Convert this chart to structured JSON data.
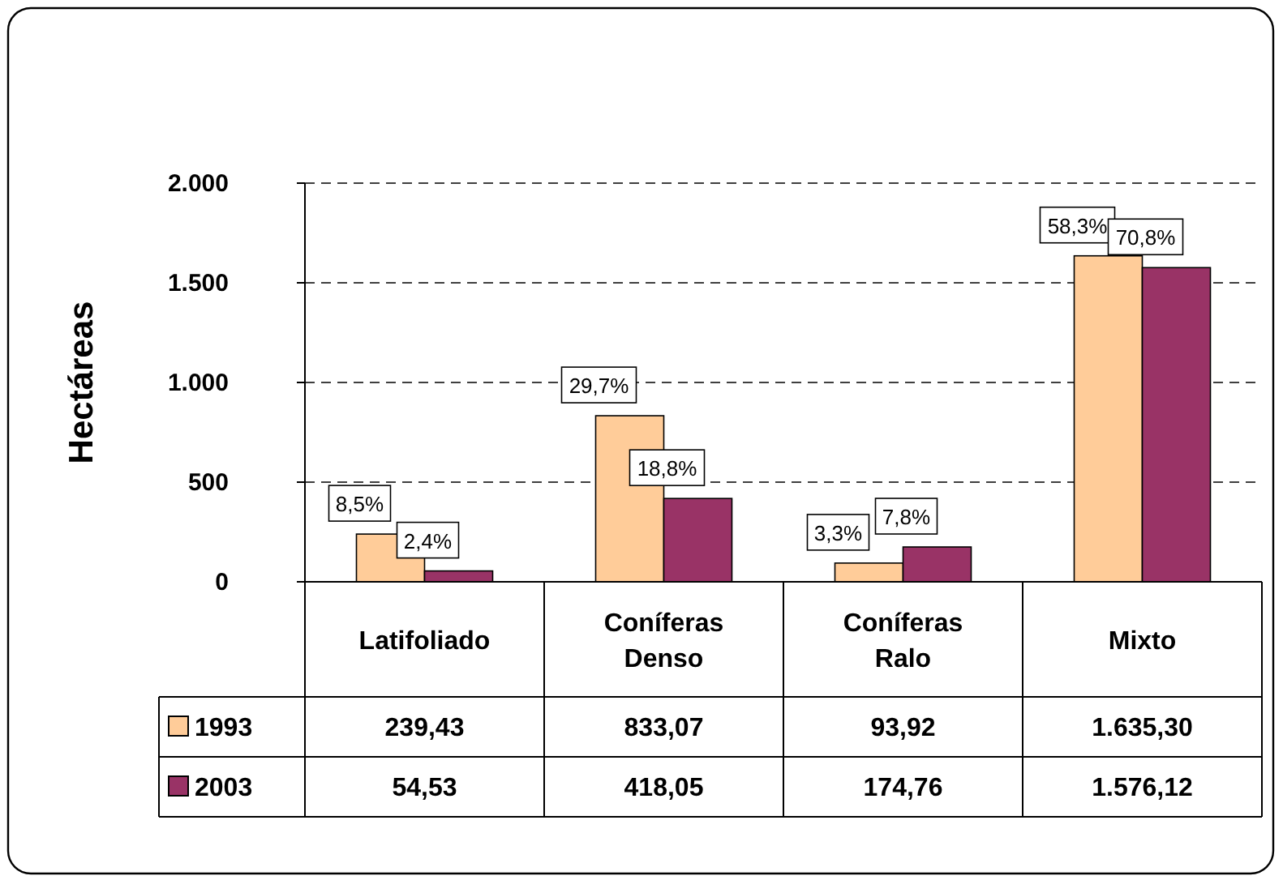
{
  "chart_data": {
    "type": "bar",
    "ylabel": "Hectáreas",
    "categories": [
      "Latifoliado",
      "Coníferas\nDenso",
      "Coníferas\nRalo",
      "Mixto"
    ],
    "series": [
      {
        "name": "1993",
        "color": "#ffcc99",
        "values": [
          239.43,
          833.07,
          93.92,
          1635.3
        ],
        "value_labels": [
          "239,43",
          "833,07",
          "93,92",
          "1.635,30"
        ]
      },
      {
        "name": "2003",
        "color": "#993366",
        "values": [
          54.53,
          418.05,
          174.76,
          1576.12
        ],
        "value_labels": [
          "54,53",
          "418,05",
          "174,76",
          "1.576,12"
        ]
      }
    ],
    "annotations": [
      {
        "text": "8,5%",
        "x": "Latifoliado",
        "y": 239.43
      },
      {
        "text": "29,7%",
        "x": "Coníferas\nDenso",
        "y": 833.07
      },
      {
        "text": "3,3%",
        "x": "Coníferas\nRalo",
        "y": 93.92
      },
      {
        "text": "58,3%",
        "x": "Mixto",
        "y": 1635.3
      },
      {
        "text": "2,4%",
        "x": "Latifoliado",
        "y": 54.53
      },
      {
        "text": "18,8%",
        "x": "Coníferas\nDenso",
        "y": 418.05
      },
      {
        "text": "7,8%",
        "x": "Coníferas\nRalo",
        "y": 174.76
      },
      {
        "text": "70,8%",
        "x": "Mixto",
        "y": 1576.12
      }
    ],
    "ylim": [
      0,
      2000
    ],
    "yticks": [
      0,
      500,
      {
        "value": 1000,
        "label": "1.000"
      },
      {
        "value": 1500,
        "label": "1.500"
      },
      {
        "value": 2000,
        "label": "2.000"
      }
    ],
    "grid": "y",
    "legend": "bottom left"
  }
}
